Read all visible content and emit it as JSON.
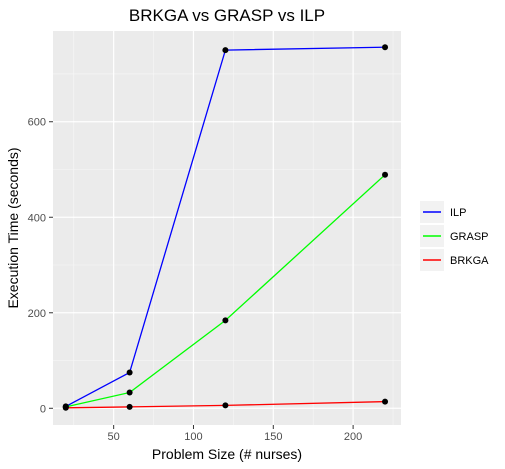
{
  "chart_data": {
    "type": "line",
    "title": "BRKGA vs GRASP vs ILP",
    "xlabel": "Problem Size (# nurses)",
    "ylabel": "Execution Time (seconds)",
    "xlim": [
      12,
      230
    ],
    "ylim": [
      -35,
      790
    ],
    "xticks": [
      50,
      100,
      150,
      200
    ],
    "yticks": [
      0,
      200,
      400,
      600
    ],
    "grid": true,
    "legend_position": "right",
    "x": [
      20,
      60,
      120,
      220
    ],
    "series": [
      {
        "name": "ILP",
        "color": "#0000ff",
        "values": [
          4,
          75,
          750,
          756
        ]
      },
      {
        "name": "GRASP",
        "color": "#00ff00",
        "values": [
          3,
          33,
          184,
          489
        ]
      },
      {
        "name": "BRKGA",
        "color": "#ff0000",
        "values": [
          1,
          3,
          6,
          14
        ]
      }
    ]
  }
}
